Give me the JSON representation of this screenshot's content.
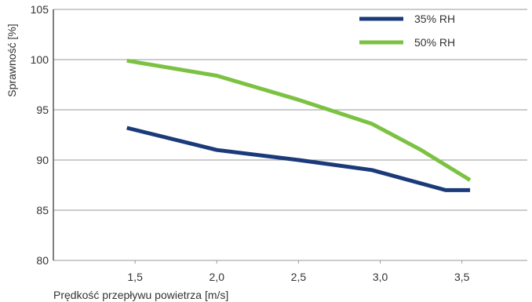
{
  "chart_data": {
    "type": "line",
    "title": "",
    "xlabel": "Prędkość przepływu powietrza [m/s]",
    "ylabel": "Sprawność [%]",
    "xlim": [
      1.0,
      3.9
    ],
    "ylim": [
      80,
      105
    ],
    "x_ticks": [
      "1,5",
      "2,0",
      "2,5",
      "3,0",
      "3,5"
    ],
    "y_ticks": [
      "80",
      "85",
      "90",
      "95",
      "100",
      "105"
    ],
    "grid": "horizontal",
    "legend_position": "top-right",
    "series": [
      {
        "name": "35% RH",
        "color": "#1a3a7a",
        "points": [
          [
            1.45,
            93.2
          ],
          [
            2.0,
            91.0
          ],
          [
            2.5,
            90.0
          ],
          [
            2.95,
            89.0
          ],
          [
            3.4,
            87.0
          ],
          [
            3.55,
            87.0
          ]
        ]
      },
      {
        "name": "50% RH",
        "color": "#7cc242",
        "points": [
          [
            1.45,
            99.9
          ],
          [
            2.0,
            98.4
          ],
          [
            2.5,
            96.0
          ],
          [
            2.95,
            93.6
          ],
          [
            3.25,
            91.0
          ],
          [
            3.55,
            88.0
          ]
        ]
      }
    ]
  }
}
